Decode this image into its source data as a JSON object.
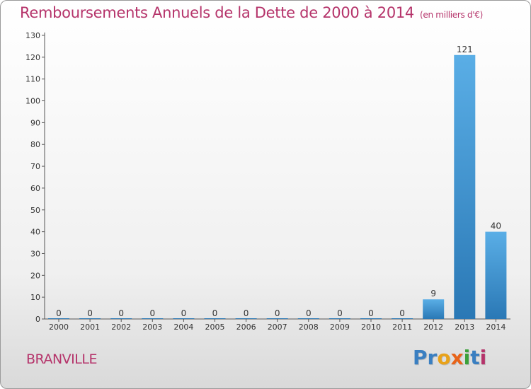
{
  "title": "Remboursements Annuels de la Dette de 2000 à 2014",
  "subtitle": "(en milliers d'€)",
  "city": "BRANVILLE",
  "logo": {
    "text": "Proxiti",
    "letters": [
      {
        "char": "P",
        "color": "#3a7fc1"
      },
      {
        "char": "r",
        "color": "#3a7fc1"
      },
      {
        "char": "o",
        "color": "#e8a21a"
      },
      {
        "char": "x",
        "color": "#e8641a"
      },
      {
        "char": "i",
        "color": "#3aa13a"
      },
      {
        "char": "t",
        "color": "#3a7fc1"
      },
      {
        "char": "i",
        "color": "#b5336a"
      }
    ]
  },
  "colors": {
    "title": "#b5336a",
    "bar_top": "#5aaee6",
    "bar_bottom": "#2a78b5"
  },
  "chart_data": {
    "type": "bar",
    "categories": [
      "2000",
      "2001",
      "2002",
      "2003",
      "2004",
      "2005",
      "2006",
      "2007",
      "2008",
      "2009",
      "2010",
      "2011",
      "2012",
      "2013",
      "2014"
    ],
    "values": [
      0,
      0,
      0,
      0,
      0,
      0,
      0,
      0,
      0,
      0,
      0,
      0,
      9,
      121,
      40
    ],
    "ylim": [
      0,
      130
    ],
    "yticks": [
      0,
      10,
      20,
      30,
      40,
      50,
      60,
      70,
      80,
      90,
      100,
      110,
      120,
      130
    ],
    "grid": false,
    "legend": "none"
  }
}
